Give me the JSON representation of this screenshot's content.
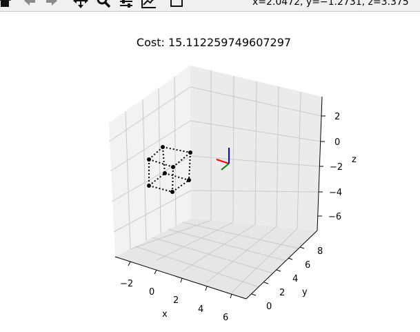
{
  "toolbar": {
    "buttons": [
      {
        "name": "home-button",
        "icon": "home-icon"
      },
      {
        "name": "back-button",
        "icon": "arrow-left-icon"
      },
      {
        "name": "forward-button",
        "icon": "arrow-right-icon"
      },
      {
        "name": "pan-button",
        "icon": "move-icon"
      },
      {
        "name": "zoom-button",
        "icon": "magnifier-icon"
      },
      {
        "name": "configure-subplots-button",
        "icon": "sliders-icon"
      },
      {
        "name": "edit-axes-button",
        "icon": "chart-edit-icon"
      },
      {
        "name": "save-button",
        "icon": "floppy-disk-icon"
      }
    ],
    "coords_readout": "x=2.0472, y=−1.2731, z=3.375"
  },
  "chart_data": {
    "type": "3d-scatter",
    "title": "Cost: 15.112259749607297",
    "xlabel": "x",
    "ylabel": "y",
    "zlabel": "z",
    "x_ticks": [
      "−2",
      "0",
      "2",
      "4",
      "6"
    ],
    "y_ticks": [
      "0",
      "2",
      "4",
      "6",
      "8"
    ],
    "z_ticks": [
      "2",
      "0",
      "−2",
      "−4",
      "−6"
    ],
    "grid": true,
    "cube_edge_style": "dotted",
    "cube_edge_color": "#000000",
    "point_color": "#000000",
    "frame_axes_colors": {
      "x": "#ff0000",
      "y": "#008000",
      "z": "#0000ff"
    }
  }
}
